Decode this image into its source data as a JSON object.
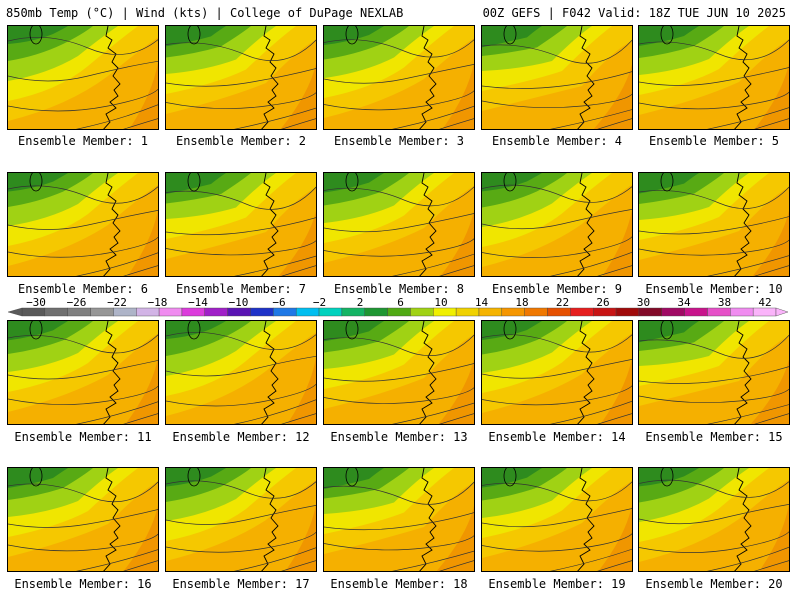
{
  "header": {
    "left": "850mb Temp (°C) | Wind (kts) | College of DuPage NEXLAB",
    "right": "00Z GEFS | F042 Valid: 18Z TUE JUN 10 2025"
  },
  "members": [
    "Ensemble Member: 1",
    "Ensemble Member: 2",
    "Ensemble Member: 3",
    "Ensemble Member: 4",
    "Ensemble Member: 5",
    "Ensemble Member: 6",
    "Ensemble Member: 7",
    "Ensemble Member: 8",
    "Ensemble Member: 9",
    "Ensemble Member: 10",
    "Ensemble Member: 11",
    "Ensemble Member: 12",
    "Ensemble Member: 13",
    "Ensemble Member: 14",
    "Ensemble Member: 15",
    "Ensemble Member: 16",
    "Ensemble Member: 17",
    "Ensemble Member: 18",
    "Ensemble Member: 19",
    "Ensemble Member: 20"
  ],
  "colorbar": {
    "labels": [
      "−30",
      "−26",
      "−22",
      "−18",
      "−14",
      "−10",
      "−6",
      "−2",
      "2",
      "6",
      "10",
      "14",
      "18",
      "22",
      "26",
      "30",
      "34",
      "38",
      "42"
    ],
    "colors": [
      "#5a5a5a",
      "#707070",
      "#808080",
      "#969696",
      "#aeb4c8",
      "#d2b4e6",
      "#f08cf0",
      "#dc3cdc",
      "#a020c8",
      "#5a14b4",
      "#1e32c8",
      "#1e78e6",
      "#00bef0",
      "#00d2be",
      "#14b464",
      "#1e9632",
      "#50aa14",
      "#a0d214",
      "#f0f000",
      "#f0d200",
      "#f5b400",
      "#f59600",
      "#f07800",
      "#e65000",
      "#e61e1e",
      "#c81414",
      "#a00a0a",
      "#820a28",
      "#a00a64",
      "#c8148c",
      "#e650c8",
      "#f08cf0",
      "#fab4fa"
    ]
  },
  "colors": {
    "dark_green": "#2e8b1e",
    "green": "#58aa14",
    "light_green": "#a0d214",
    "yellow": "#f0e600",
    "gold": "#f5c800",
    "orange": "#f5b000",
    "deep_orange": "#f09600"
  }
}
